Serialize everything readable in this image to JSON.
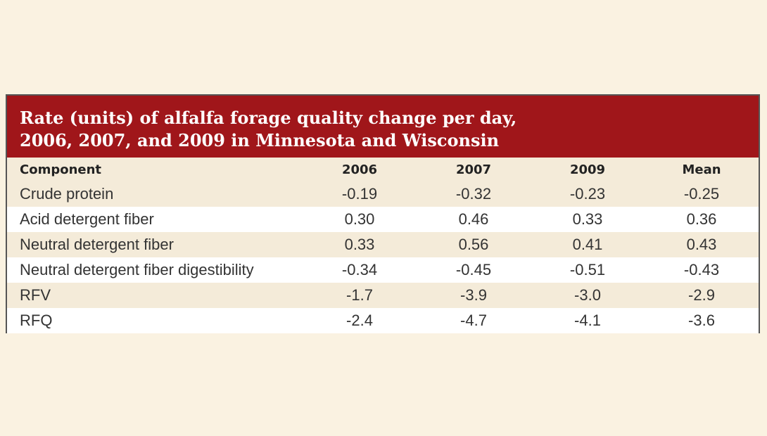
{
  "table": {
    "title_lines": [
      "Rate (units) of alfalfa forage quality change per day,",
      "2006, 2007, and 2009 in Minnesota and Wisconsin"
    ],
    "columns": [
      "Component",
      "2006",
      "2007",
      "2009",
      "Mean"
    ],
    "rows": [
      {
        "component": "Crude protein",
        "values": [
          "-0.19",
          "-0.32",
          "-0.23",
          "-0.25"
        ]
      },
      {
        "component": "Acid detergent fiber",
        "values": [
          "0.30",
          "0.46",
          "0.33",
          "0.36"
        ]
      },
      {
        "component": "Neutral detergent fiber",
        "values": [
          "0.33",
          "0.56",
          "0.41",
          "0.43"
        ]
      },
      {
        "component": "Neutral detergent fiber digestibility",
        "values": [
          "-0.34",
          "-0.45",
          "-0.51",
          "-0.43"
        ]
      },
      {
        "component": "RFV",
        "values": [
          "-1.7",
          "-3.9",
          "-3.0",
          "-2.9"
        ]
      },
      {
        "component": "RFQ",
        "values": [
          "-2.4",
          "-4.7",
          "-4.1",
          "-3.6"
        ]
      }
    ]
  },
  "colors": {
    "title_background": "#a0161a",
    "page_background": "#faf2e1",
    "shaded_row": "#f4ebd9"
  },
  "chart_data": {
    "type": "table",
    "title": "Rate (units) of alfalfa forage quality change per day, 2006, 2007, and 2009 in Minnesota and Wisconsin",
    "columns": [
      "Component",
      "2006",
      "2007",
      "2009",
      "Mean"
    ],
    "rows": [
      [
        "Crude protein",
        -0.19,
        -0.32,
        -0.23,
        -0.25
      ],
      [
        "Acid detergent fiber",
        0.3,
        0.46,
        0.33,
        0.36
      ],
      [
        "Neutral detergent fiber",
        0.33,
        0.56,
        0.41,
        0.43
      ],
      [
        "Neutral detergent fiber digestibility",
        -0.34,
        -0.45,
        -0.51,
        -0.43
      ],
      [
        "RFV",
        -1.7,
        -3.9,
        -3.0,
        -2.9
      ],
      [
        "RFQ",
        -2.4,
        -4.7,
        -4.1,
        -3.6
      ]
    ]
  }
}
